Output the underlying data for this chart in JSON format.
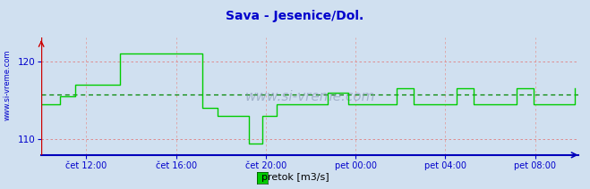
{
  "title": "Sava - Jesenice/Dol.",
  "ylabel_left": "www.si-vreme.com",
  "legend_label": "pretok [m3/s]",
  "legend_color": "#00cc00",
  "line_color": "#00cc00",
  "bg_color": "#d0e0f0",
  "plot_bg_color": "#d0e0f0",
  "grid_color_h": "#e08080",
  "grid_color_v": "#e0a0a0",
  "mean_line_color": "#008800",
  "axis_bottom_color": "#0000bb",
  "axis_left_color": "#cc0000",
  "title_color": "#0000cc",
  "tick_label_color": "#0000cc",
  "ylim": [
    108.0,
    123.0
  ],
  "yticks": [
    110,
    120
  ],
  "watermark": "www.si-vreme.com",
  "xtick_positions": [
    24,
    72,
    120,
    168,
    216,
    264
  ],
  "xtick_labels": [
    "čet 12:00",
    "čet 16:00",
    "čet 20:00",
    "pet 00:00",
    "pet 04:00",
    "pet 08:00"
  ],
  "total_points": 288,
  "values": [
    114.5,
    114.5,
    114.5,
    114.5,
    114.5,
    114.5,
    114.5,
    114.5,
    114.5,
    114.5,
    115.5,
    115.5,
    115.5,
    115.5,
    115.5,
    115.5,
    115.5,
    115.5,
    117.0,
    117.0,
    117.0,
    117.0,
    117.0,
    117.0,
    117.0,
    117.0,
    117.0,
    117.0,
    117.0,
    117.0,
    117.0,
    117.0,
    117.0,
    117.0,
    117.0,
    117.0,
    117.0,
    117.0,
    117.0,
    117.0,
    117.0,
    117.0,
    121.0,
    121.0,
    121.0,
    121.0,
    121.0,
    121.0,
    121.0,
    121.0,
    121.0,
    121.0,
    121.0,
    121.0,
    121.0,
    121.0,
    121.0,
    121.0,
    121.0,
    121.0,
    121.0,
    121.0,
    121.0,
    121.0,
    121.0,
    121.0,
    121.0,
    121.0,
    121.0,
    121.0,
    121.0,
    121.0,
    121.0,
    121.0,
    121.0,
    121.0,
    121.0,
    121.0,
    121.0,
    121.0,
    121.0,
    121.0,
    121.0,
    121.0,
    121.0,
    121.0,
    114.0,
    114.0,
    114.0,
    114.0,
    114.0,
    114.0,
    114.0,
    114.0,
    113.0,
    113.0,
    113.0,
    113.0,
    113.0,
    113.0,
    113.0,
    113.0,
    113.0,
    113.0,
    113.0,
    113.0,
    113.0,
    113.0,
    113.0,
    113.0,
    113.0,
    109.5,
    109.5,
    109.5,
    109.5,
    109.5,
    109.5,
    109.5,
    113.0,
    113.0,
    113.0,
    113.0,
    113.0,
    113.0,
    113.0,
    113.0,
    114.5,
    114.5,
    114.5,
    114.5,
    114.5,
    114.5,
    114.5,
    114.5,
    114.5,
    114.5,
    114.5,
    114.5,
    114.5,
    114.5,
    114.5,
    114.5,
    114.5,
    114.5,
    114.5,
    114.5,
    114.5,
    114.5,
    114.5,
    114.5,
    114.5,
    114.5,
    114.5,
    116.0,
    116.0,
    116.0,
    116.0,
    116.0,
    116.0,
    116.0,
    116.0,
    116.0,
    116.0,
    116.0,
    114.5,
    114.5,
    114.5,
    114.5,
    114.5,
    114.5,
    114.5,
    114.5,
    114.5,
    114.5,
    114.5,
    114.5,
    114.5,
    114.5,
    114.5,
    114.5,
    114.5,
    114.5,
    114.5,
    114.5,
    114.5,
    114.5,
    114.5,
    114.5,
    114.5,
    114.5,
    116.5,
    116.5,
    116.5,
    116.5,
    116.5,
    116.5,
    116.5,
    116.5,
    116.5,
    114.5,
    114.5,
    114.5,
    114.5,
    114.5,
    114.5,
    114.5,
    114.5,
    114.5,
    114.5,
    114.5,
    114.5,
    114.5,
    114.5,
    114.5,
    114.5,
    114.5,
    114.5,
    114.5,
    114.5,
    114.5,
    114.5,
    114.5,
    116.5,
    116.5,
    116.5,
    116.5,
    116.5,
    116.5,
    116.5,
    116.5,
    116.5,
    114.5,
    114.5,
    114.5,
    114.5,
    114.5,
    114.5,
    114.5,
    114.5,
    114.5,
    114.5,
    114.5,
    114.5,
    114.5,
    114.5,
    114.5,
    114.5,
    114.5,
    114.5,
    114.5,
    114.5,
    114.5,
    114.5,
    114.5,
    116.5,
    116.5,
    116.5,
    116.5,
    116.5,
    116.5,
    116.5,
    116.5,
    116.5,
    114.5,
    114.5,
    114.5,
    114.5,
    114.5,
    114.5,
    114.5,
    114.5,
    114.5,
    114.5,
    114.5,
    114.5,
    114.5,
    114.5,
    114.5,
    114.5,
    114.5,
    114.5,
    114.5,
    114.5,
    114.5,
    114.5,
    116.5
  ]
}
